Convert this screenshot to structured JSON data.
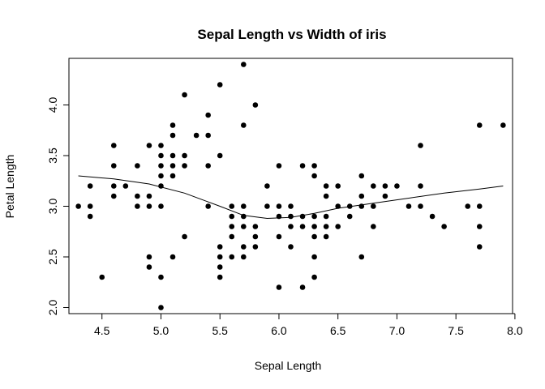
{
  "chart_data": {
    "type": "scatter",
    "title": "Sepal Length vs Width of iris",
    "xlabel": "Sepal Length",
    "ylabel": "Petal Length",
    "xlim": [
      4.22,
      7.98
    ],
    "ylim": [
      1.94,
      4.46
    ],
    "xticks": [
      "4.5",
      "5.0",
      "5.5",
      "6.0",
      "6.5",
      "7.0",
      "7.5",
      "8.0"
    ],
    "yticks": [
      "2.0",
      "2.5",
      "3.0",
      "3.5",
      "4.0"
    ],
    "grid": false,
    "point_color": "#000000",
    "points": [
      {
        "x": 4.3,
        "y": 3.0
      },
      {
        "x": 4.4,
        "y": 2.9
      },
      {
        "x": 4.4,
        "y": 3.0
      },
      {
        "x": 4.4,
        "y": 3.2
      },
      {
        "x": 4.5,
        "y": 2.3
      },
      {
        "x": 4.6,
        "y": 3.1
      },
      {
        "x": 4.6,
        "y": 3.2
      },
      {
        "x": 4.6,
        "y": 3.4
      },
      {
        "x": 4.6,
        "y": 3.6
      },
      {
        "x": 4.7,
        "y": 3.2
      },
      {
        "x": 4.8,
        "y": 3.0
      },
      {
        "x": 4.8,
        "y": 3.1
      },
      {
        "x": 4.8,
        "y": 3.4
      },
      {
        "x": 4.9,
        "y": 2.4
      },
      {
        "x": 4.9,
        "y": 2.5
      },
      {
        "x": 4.9,
        "y": 3.0
      },
      {
        "x": 4.9,
        "y": 3.1
      },
      {
        "x": 4.9,
        "y": 3.6
      },
      {
        "x": 5.0,
        "y": 2.0
      },
      {
        "x": 5.0,
        "y": 2.3
      },
      {
        "x": 5.0,
        "y": 3.0
      },
      {
        "x": 5.0,
        "y": 3.2
      },
      {
        "x": 5.0,
        "y": 3.3
      },
      {
        "x": 5.0,
        "y": 3.4
      },
      {
        "x": 5.0,
        "y": 3.5
      },
      {
        "x": 5.0,
        "y": 3.6
      },
      {
        "x": 5.1,
        "y": 2.5
      },
      {
        "x": 5.1,
        "y": 3.3
      },
      {
        "x": 5.1,
        "y": 3.4
      },
      {
        "x": 5.1,
        "y": 3.5
      },
      {
        "x": 5.1,
        "y": 3.7
      },
      {
        "x": 5.1,
        "y": 3.8
      },
      {
        "x": 5.2,
        "y": 2.7
      },
      {
        "x": 5.2,
        "y": 3.4
      },
      {
        "x": 5.2,
        "y": 3.5
      },
      {
        "x": 5.2,
        "y": 4.1
      },
      {
        "x": 5.3,
        "y": 3.7
      },
      {
        "x": 5.4,
        "y": 3.0
      },
      {
        "x": 5.4,
        "y": 3.4
      },
      {
        "x": 5.4,
        "y": 3.7
      },
      {
        "x": 5.4,
        "y": 3.9
      },
      {
        "x": 5.5,
        "y": 2.3
      },
      {
        "x": 5.5,
        "y": 2.4
      },
      {
        "x": 5.5,
        "y": 2.5
      },
      {
        "x": 5.5,
        "y": 2.6
      },
      {
        "x": 5.5,
        "y": 3.5
      },
      {
        "x": 5.5,
        "y": 4.2
      },
      {
        "x": 5.6,
        "y": 2.5
      },
      {
        "x": 5.6,
        "y": 2.7
      },
      {
        "x": 5.6,
        "y": 2.8
      },
      {
        "x": 5.6,
        "y": 2.9
      },
      {
        "x": 5.6,
        "y": 3.0
      },
      {
        "x": 5.7,
        "y": 2.5
      },
      {
        "x": 5.7,
        "y": 2.6
      },
      {
        "x": 5.7,
        "y": 2.8
      },
      {
        "x": 5.7,
        "y": 2.9
      },
      {
        "x": 5.7,
        "y": 3.0
      },
      {
        "x": 5.7,
        "y": 3.8
      },
      {
        "x": 5.7,
        "y": 4.4
      },
      {
        "x": 5.8,
        "y": 2.6
      },
      {
        "x": 5.8,
        "y": 2.7
      },
      {
        "x": 5.8,
        "y": 2.8
      },
      {
        "x": 5.8,
        "y": 4.0
      },
      {
        "x": 5.9,
        "y": 3.0
      },
      {
        "x": 5.9,
        "y": 3.2
      },
      {
        "x": 6.0,
        "y": 2.2
      },
      {
        "x": 6.0,
        "y": 2.7
      },
      {
        "x": 6.0,
        "y": 2.9
      },
      {
        "x": 6.0,
        "y": 3.0
      },
      {
        "x": 6.0,
        "y": 3.4
      },
      {
        "x": 6.1,
        "y": 2.6
      },
      {
        "x": 6.1,
        "y": 2.8
      },
      {
        "x": 6.1,
        "y": 2.9
      },
      {
        "x": 6.1,
        "y": 3.0
      },
      {
        "x": 6.2,
        "y": 2.2
      },
      {
        "x": 6.2,
        "y": 2.8
      },
      {
        "x": 6.2,
        "y": 2.9
      },
      {
        "x": 6.2,
        "y": 3.4
      },
      {
        "x": 6.3,
        "y": 2.3
      },
      {
        "x": 6.3,
        "y": 2.5
      },
      {
        "x": 6.3,
        "y": 2.7
      },
      {
        "x": 6.3,
        "y": 2.8
      },
      {
        "x": 6.3,
        "y": 2.9
      },
      {
        "x": 6.3,
        "y": 3.3
      },
      {
        "x": 6.3,
        "y": 3.4
      },
      {
        "x": 6.4,
        "y": 2.7
      },
      {
        "x": 6.4,
        "y": 2.8
      },
      {
        "x": 6.4,
        "y": 2.9
      },
      {
        "x": 6.4,
        "y": 3.1
      },
      {
        "x": 6.4,
        "y": 3.2
      },
      {
        "x": 6.5,
        "y": 2.8
      },
      {
        "x": 6.5,
        "y": 3.0
      },
      {
        "x": 6.5,
        "y": 3.2
      },
      {
        "x": 6.6,
        "y": 2.9
      },
      {
        "x": 6.6,
        "y": 3.0
      },
      {
        "x": 6.7,
        "y": 2.5
      },
      {
        "x": 6.7,
        "y": 3.0
      },
      {
        "x": 6.7,
        "y": 3.1
      },
      {
        "x": 6.7,
        "y": 3.3
      },
      {
        "x": 6.8,
        "y": 2.8
      },
      {
        "x": 6.8,
        "y": 3.0
      },
      {
        "x": 6.8,
        "y": 3.2
      },
      {
        "x": 6.9,
        "y": 3.1
      },
      {
        "x": 6.9,
        "y": 3.2
      },
      {
        "x": 7.0,
        "y": 3.2
      },
      {
        "x": 7.1,
        "y": 3.0
      },
      {
        "x": 7.2,
        "y": 3.0
      },
      {
        "x": 7.2,
        "y": 3.2
      },
      {
        "x": 7.2,
        "y": 3.6
      },
      {
        "x": 7.3,
        "y": 2.9
      },
      {
        "x": 7.4,
        "y": 2.8
      },
      {
        "x": 7.6,
        "y": 3.0
      },
      {
        "x": 7.7,
        "y": 2.6
      },
      {
        "x": 7.7,
        "y": 2.8
      },
      {
        "x": 7.7,
        "y": 3.0
      },
      {
        "x": 7.7,
        "y": 3.8
      },
      {
        "x": 7.9,
        "y": 3.8
      }
    ],
    "smooth_line": [
      {
        "x": 4.3,
        "y": 3.3
      },
      {
        "x": 4.6,
        "y": 3.27
      },
      {
        "x": 4.9,
        "y": 3.22
      },
      {
        "x": 5.2,
        "y": 3.13
      },
      {
        "x": 5.5,
        "y": 3.0
      },
      {
        "x": 5.7,
        "y": 2.91
      },
      {
        "x": 5.9,
        "y": 2.88
      },
      {
        "x": 6.1,
        "y": 2.89
      },
      {
        "x": 6.3,
        "y": 2.93
      },
      {
        "x": 6.5,
        "y": 2.98
      },
      {
        "x": 6.8,
        "y": 3.03
      },
      {
        "x": 7.1,
        "y": 3.08
      },
      {
        "x": 7.4,
        "y": 3.13
      },
      {
        "x": 7.7,
        "y": 3.17
      },
      {
        "x": 7.9,
        "y": 3.2
      }
    ]
  }
}
